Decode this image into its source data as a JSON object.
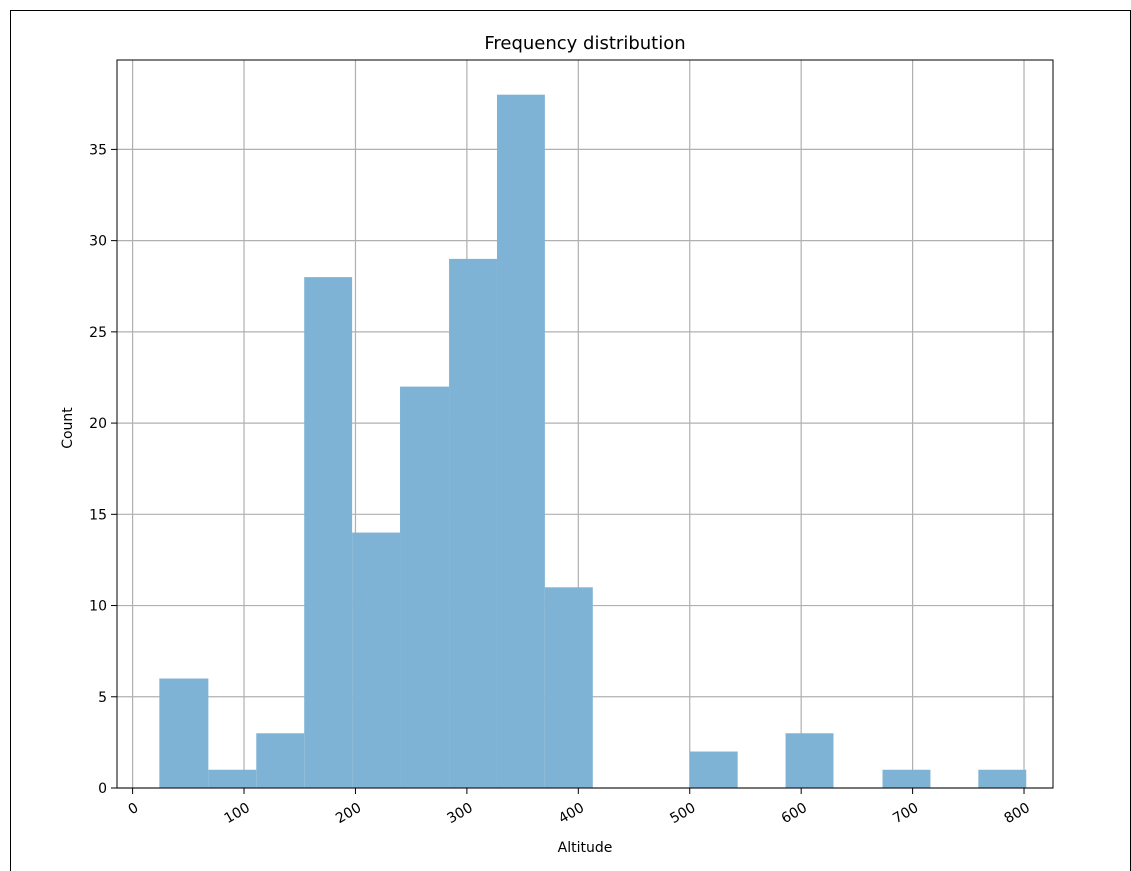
{
  "chart_data": {
    "type": "bar",
    "title": "Frequency distribution",
    "xlabel": "Altitude",
    "ylabel": "Count",
    "xlim": [
      -14,
      826
    ],
    "ylim": [
      0,
      39.9
    ],
    "x_ticks": [
      0,
      100,
      200,
      300,
      400,
      500,
      600,
      700,
      800
    ],
    "x_tick_labels": [
      "0",
      "100",
      "200",
      "300",
      "400",
      "500",
      "600",
      "700",
      "800"
    ],
    "y_ticks": [
      0,
      5,
      10,
      15,
      20,
      25,
      30,
      35
    ],
    "y_tick_labels": [
      "0",
      "5",
      "10",
      "15",
      "20",
      "25",
      "30",
      "35"
    ],
    "grid": true,
    "bar_color": "#7fb3d5",
    "bins": [
      {
        "x0": 24,
        "x1": 68,
        "count": 6
      },
      {
        "x0": 68,
        "x1": 111,
        "count": 1
      },
      {
        "x0": 111,
        "x1": 154,
        "count": 3
      },
      {
        "x0": 154,
        "x1": 197,
        "count": 28
      },
      {
        "x0": 197,
        "x1": 240,
        "count": 14
      },
      {
        "x0": 240,
        "x1": 284,
        "count": 22
      },
      {
        "x0": 284,
        "x1": 327,
        "count": 29
      },
      {
        "x0": 327,
        "x1": 370,
        "count": 38
      },
      {
        "x0": 370,
        "x1": 413,
        "count": 11
      },
      {
        "x0": 413,
        "x1": 457,
        "count": 0
      },
      {
        "x0": 457,
        "x1": 500,
        "count": 0
      },
      {
        "x0": 500,
        "x1": 543,
        "count": 2
      },
      {
        "x0": 543,
        "x1": 586,
        "count": 0
      },
      {
        "x0": 586,
        "x1": 629,
        "count": 3
      },
      {
        "x0": 629,
        "x1": 673,
        "count": 0
      },
      {
        "x0": 673,
        "x1": 716,
        "count": 1
      },
      {
        "x0": 716,
        "x1": 759,
        "count": 0
      },
      {
        "x0": 759,
        "x1": 802,
        "count": 1
      }
    ]
  }
}
